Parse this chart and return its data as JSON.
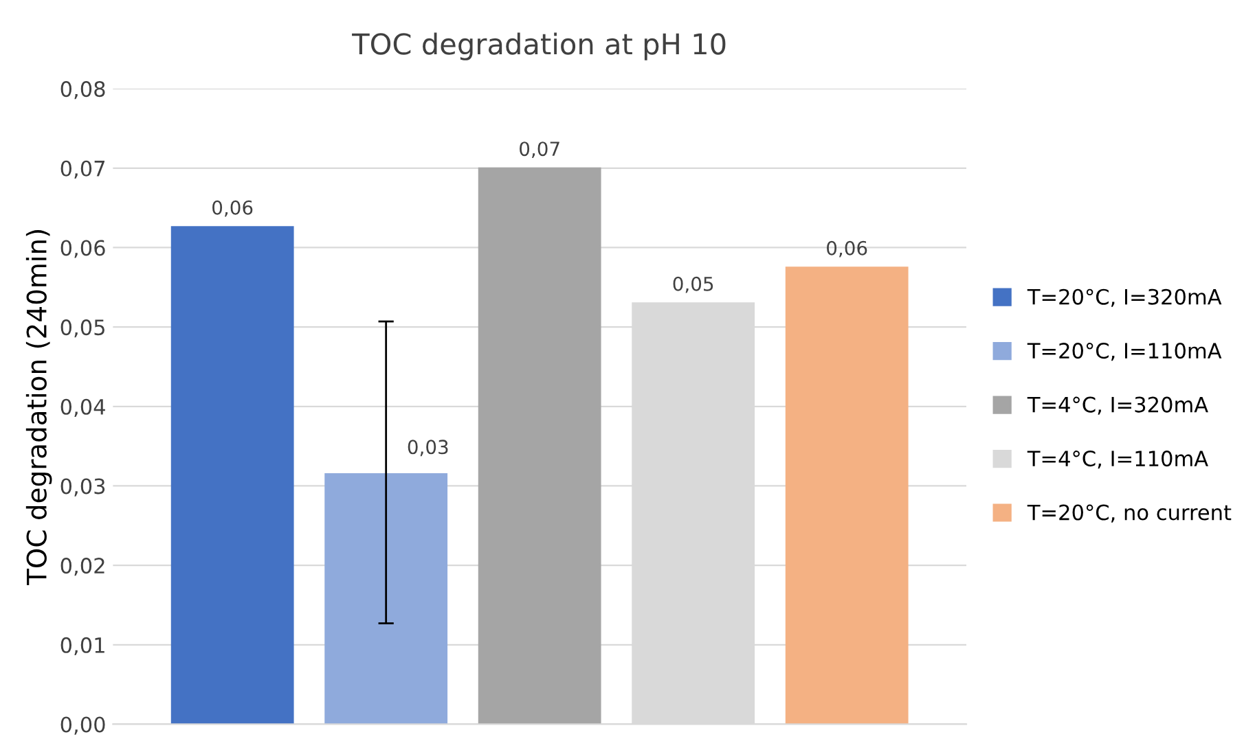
{
  "chart_data": {
    "type": "bar",
    "title": "TOC degradation at pH 10",
    "ylabel": "TOC degradation (240min)",
    "categories": [
      null
    ],
    "series": [
      {
        "name": "T=20°C, I=320mA",
        "color": "#4472c4",
        "values": [
          0.0627
        ],
        "value_labels": [
          "0,06"
        ]
      },
      {
        "name": "T=20°C, I=110mA",
        "color": "#8faadc",
        "values": [
          0.0316
        ],
        "value_labels": [
          "0,03"
        ],
        "errors": [
          [
            0.0127,
            0.0507
          ]
        ]
      },
      {
        "name": "T=4°C, I=320mA",
        "color": "#a5a5a5",
        "values": [
          0.0701
        ],
        "value_labels": [
          "0,07"
        ]
      },
      {
        "name": "T=4°C, I=110mA",
        "color": "#d9d9d9",
        "values": [
          0.0531
        ],
        "value_labels": [
          "0,05"
        ]
      },
      {
        "name": "T=20°C, no current",
        "color": "#f4b183",
        "values": [
          0.0576
        ],
        "value_labels": [
          "0,06"
        ]
      }
    ],
    "ylim": [
      0,
      0.08
    ],
    "yticks": [
      {
        "value": 0,
        "label": "0,00"
      },
      {
        "value": 0.01,
        "label": "0,01"
      },
      {
        "value": 0.02,
        "label": "0,02"
      },
      {
        "value": 0.03,
        "label": "0,03"
      },
      {
        "value": 0.04,
        "label": "0,04"
      },
      {
        "value": 0.05,
        "label": "0,05"
      },
      {
        "value": 0.06,
        "label": "0,06"
      },
      {
        "value": 0.07,
        "label": "0,07"
      },
      {
        "value": 0.08,
        "label": "0,08"
      }
    ],
    "grid": "y",
    "legend": "right"
  }
}
